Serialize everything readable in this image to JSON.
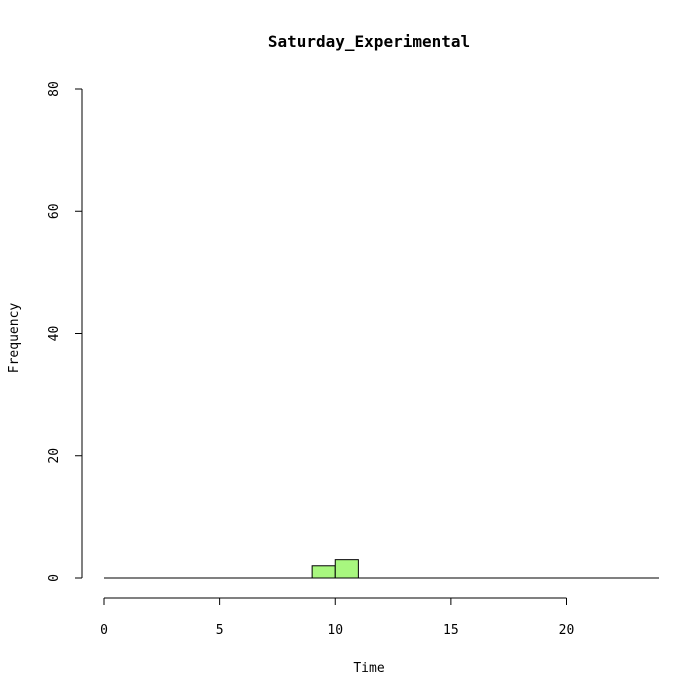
{
  "chart_data": {
    "type": "bar",
    "title": "Saturday_Experimental",
    "xlabel": "Time",
    "ylabel": "Frequency",
    "xlim": [
      0,
      24
    ],
    "ylim": [
      0,
      80
    ],
    "x_ticks": [
      0,
      5,
      10,
      15,
      20
    ],
    "y_ticks": [
      0,
      20,
      40,
      60,
      80
    ],
    "bins": [
      {
        "start": 9,
        "end": 10,
        "value": 2
      },
      {
        "start": 10,
        "end": 11,
        "value": 3
      }
    ],
    "bar_color": "#a8f77f",
    "grid": false
  }
}
